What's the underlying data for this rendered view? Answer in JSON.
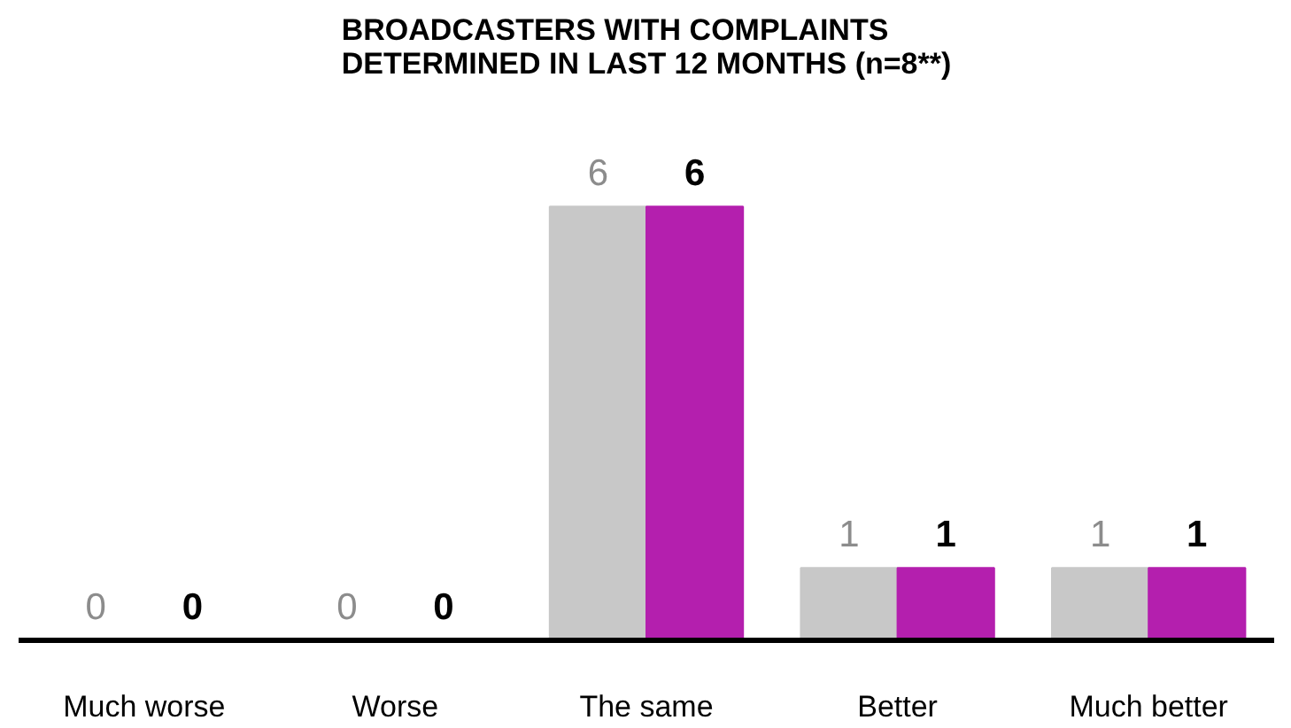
{
  "chart_data": {
    "type": "bar",
    "title": "BROADCASTERS WITH COMPLAINTS\nDETERMINED IN LAST 12 MONTHS (n=8**)",
    "categories": [
      "Much worse",
      "Worse",
      "The same",
      "Better",
      "Much better"
    ],
    "series": [
      {
        "color": "#c8c8c8",
        "values": [
          0,
          0,
          6,
          1,
          1
        ]
      },
      {
        "color": "#b41fae",
        "values": [
          0,
          0,
          6,
          1,
          1
        ]
      }
    ],
    "data_labels": true,
    "grid": false
  }
}
